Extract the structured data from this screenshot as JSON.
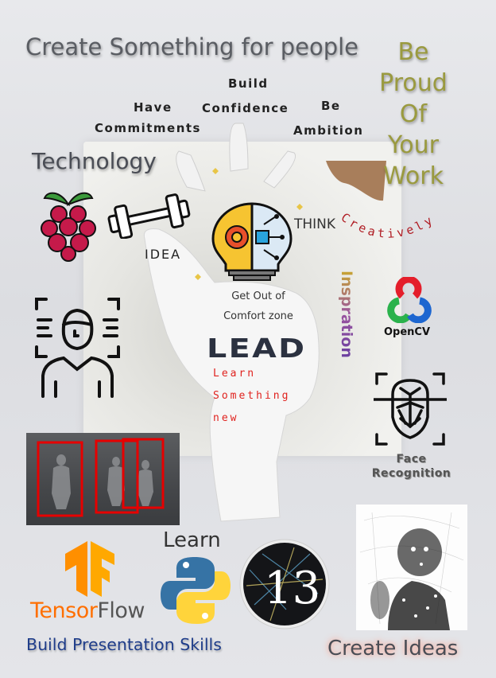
{
  "headline": "Create Something for people",
  "proud": [
    "Be",
    "Proud",
    "Of",
    "Your",
    "Work"
  ],
  "arc_words": {
    "build": "Build",
    "confidence": "Confidence",
    "have": "Have",
    "commitments": "Commitments",
    "be": "Be",
    "ambition": "Ambition"
  },
  "technology": "Technology",
  "idea": "IDEA",
  "think": "THINK",
  "creatively": "Creatively",
  "inspration": "Inspration",
  "palm": {
    "line1": "Get Out of",
    "line2": "Comfort zone",
    "lead": "LEAD",
    "learn_lines": [
      "Learn",
      "Something",
      "new"
    ]
  },
  "opencv": "OpenCV",
  "face_recognition": [
    "Face",
    "Recognition"
  ],
  "learn": "Learn",
  "tensorflow": {
    "tensor": "Tensor",
    "flow": "Flow"
  },
  "build_presentation": "Build Presentation Skills",
  "create_ideas": "Create Ideas",
  "colors": {
    "raspberry": "#c51a4a",
    "tensorflow_orange": "#ff8f00",
    "python_blue": "#3673a5",
    "python_yellow": "#ffd43b",
    "opencv_red": "#e41e2b",
    "opencv_green": "#2bb24c",
    "opencv_blue": "#1d66d0",
    "lead_text": "#2b3140",
    "red_text": "#e0231f",
    "presentation_blue": "#1f3d8a",
    "proud_olive": "#9a9a3f"
  },
  "icons": [
    "raspberry-pi-icon",
    "dumbbell-icon",
    "lightbulb-gear-circuit-icon",
    "person-scan-icon",
    "surveillance-thumbnail",
    "opencv-logo",
    "face-recognition-icon",
    "tensorflow-logo",
    "python-logo",
    "p5js-logo",
    "particle-portrait-image"
  ]
}
